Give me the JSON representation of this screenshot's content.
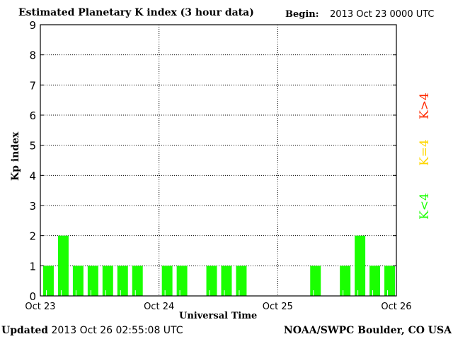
{
  "chart_data": {
    "type": "bar",
    "title": "Estimated Planetary K index (3 hour data)",
    "begin_label": "Begin:",
    "begin_value": "2013 Oct 23 0000 UTC",
    "xlabel": "Universal Time",
    "ylabel": "Kp index",
    "ylim": [
      0,
      9
    ],
    "yticks": [
      "0",
      "1",
      "2",
      "3",
      "4",
      "5",
      "6",
      "7",
      "8",
      "9"
    ],
    "xticks": [
      "Oct 23",
      "Oct 24",
      "Oct 25",
      "Oct 26"
    ],
    "interval_hours": 3,
    "values": [
      1,
      2,
      1,
      1,
      1,
      1,
      1,
      0,
      1,
      1,
      0,
      1,
      1,
      1,
      0,
      0,
      0,
      0,
      1,
      0,
      1,
      2,
      1,
      1
    ],
    "grid": true,
    "bar_color": "#1aff00",
    "legend": [
      {
        "label": "K<4",
        "color": "#1aff00"
      },
      {
        "label": "K=4",
        "color": "#ffd700"
      },
      {
        "label": "K>4",
        "color": "#ff2a00"
      }
    ]
  },
  "footer": {
    "updated_label": "Updated",
    "updated_value": "2013 Oct 26 02:55:08 UTC",
    "source": "NOAA/SWPC Boulder, CO USA"
  }
}
